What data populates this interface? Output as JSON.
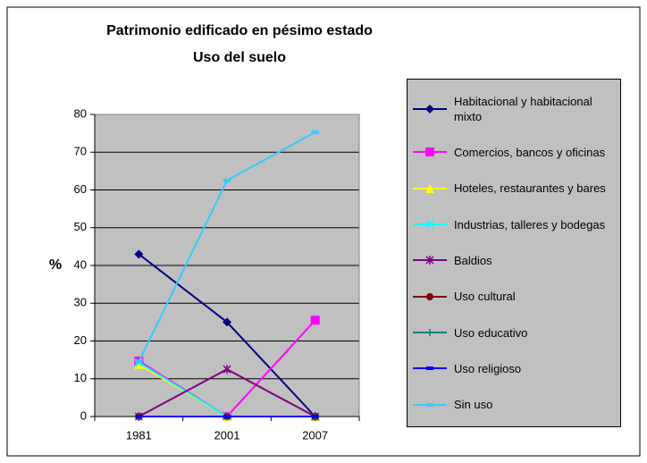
{
  "chart_data": {
    "type": "line",
    "title": [
      "Patrimonio edificado en pésimo estado",
      "Uso del suelo"
    ],
    "y_label": "%",
    "categories": [
      "1981",
      "2001",
      "2007"
    ],
    "ylim": [
      0,
      80
    ],
    "yticks": [
      0,
      10,
      20,
      30,
      40,
      50,
      60,
      70,
      80
    ],
    "grid": true,
    "legend": "right",
    "series": [
      {
        "name": "Habitacional y habitacional mixto",
        "color": "#000080",
        "marker": "diamond",
        "values": [
          43,
          25,
          0
        ]
      },
      {
        "name": "Comercios, bancos y oficinas",
        "color": "#ff00ff",
        "marker": "square",
        "values": [
          14.7,
          0,
          25.5
        ]
      },
      {
        "name": "Hoteles, restaurantes y bares",
        "color": "#ffff00",
        "marker": "triangle",
        "values": [
          13.8,
          0,
          0
        ]
      },
      {
        "name": "Industrias, talleres y bodegas",
        "color": "#00ffff",
        "marker": "x",
        "values": [
          14.3,
          0,
          0
        ]
      },
      {
        "name": "Baldios",
        "color": "#800080",
        "marker": "star",
        "values": [
          0,
          12.5,
          0
        ]
      },
      {
        "name": "Uso cultural",
        "color": "#800000",
        "marker": "circle",
        "values": [
          0,
          0,
          0
        ]
      },
      {
        "name": "Uso educativo",
        "color": "#008080",
        "marker": "plus",
        "values": [
          0,
          0,
          0
        ]
      },
      {
        "name": "Uso religioso",
        "color": "#0000ff",
        "marker": "dash",
        "values": [
          0,
          0,
          0
        ]
      },
      {
        "name": "Sin uso",
        "color": "#33ccff",
        "marker": "dash",
        "values": [
          14.5,
          62.5,
          75.3
        ]
      }
    ]
  }
}
